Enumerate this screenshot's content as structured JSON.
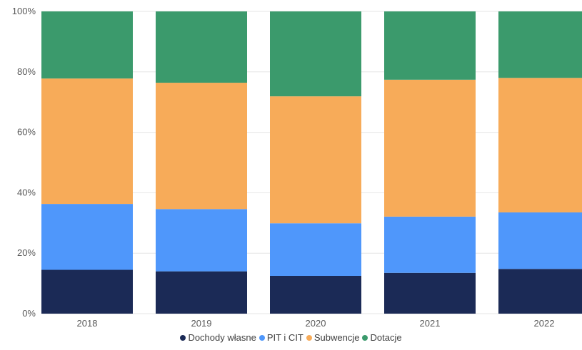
{
  "chart_data": {
    "type": "bar",
    "stacked": true,
    "normalized": true,
    "categories": [
      "2018",
      "2019",
      "2020",
      "2021",
      "2022"
    ],
    "series": [
      {
        "name": "Dochody własne",
        "color": "#1b2a56",
        "values": [
          14.5,
          14.0,
          12.5,
          13.5,
          14.8
        ]
      },
      {
        "name": "PIT i CIT",
        "color": "#4f97fb",
        "values": [
          21.8,
          20.6,
          17.4,
          18.6,
          18.7
        ]
      },
      {
        "name": "Subwencje",
        "color": "#f7ab59",
        "values": [
          41.5,
          41.8,
          42.0,
          45.3,
          44.5
        ]
      },
      {
        "name": "Dotacje",
        "color": "#3b9a6c",
        "values": [
          22.2,
          23.6,
          28.1,
          22.6,
          22.0
        ]
      }
    ],
    "yticks": [
      "0%",
      "20%",
      "40%",
      "60%",
      "80%",
      "100%"
    ],
    "ylim": [
      0,
      100
    ],
    "grid": true,
    "legend": "bottom"
  }
}
